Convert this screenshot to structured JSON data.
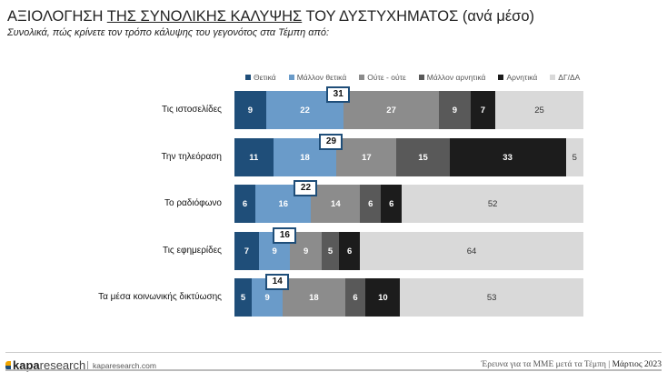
{
  "header": {
    "title_pre": "ΑΞΙΟΛΟΓΗΣΗ ",
    "title_underlined": "ΤΗΣ ΣΥΝΟΛΙΚΗΣ ΚΑΛΥΨΗΣ",
    "title_post": " ΤΟΥ ΔΥΣΤΥΧΗΜΑΤΟΣ (ανά μέσο)",
    "subtitle": "Συνολικά, πώς κρίνετε τον τρόπο κάλυψης του γεγονότος στα Τέμπη από:"
  },
  "chart_data": {
    "type": "bar",
    "orientation": "horizontal",
    "stacked": true,
    "legend_position": "top",
    "categories": [
      "Τις ιστοσελίδες",
      "Την τηλεόραση",
      "Το ραδιόφωνο",
      "Τις εφημερίδες",
      "Τα μέσα κοινωνικής δικτύωσης"
    ],
    "series": [
      {
        "name": "Θετικά",
        "color": "#1f4e79",
        "values": [
          9,
          11,
          6,
          7,
          5
        ]
      },
      {
        "name": "Μάλλον θετικά",
        "color": "#6a9bc9",
        "values": [
          22,
          18,
          16,
          9,
          9
        ]
      },
      {
        "name": "Ούτε - ούτε",
        "color": "#8c8c8c",
        "values": [
          27,
          17,
          14,
          9,
          18
        ]
      },
      {
        "name": "Μάλλον αρνητικά",
        "color": "#595959",
        "values": [
          9,
          15,
          6,
          5,
          6
        ]
      },
      {
        "name": "Αρνητικά",
        "color": "#1c1c1c",
        "values": [
          7,
          33,
          6,
          6,
          10
        ]
      },
      {
        "name": "ΔΓ/ΔΑ",
        "color": "#d9d9d9",
        "values": [
          25,
          5,
          52,
          64,
          53
        ]
      }
    ],
    "callouts": [
      31,
      29,
      22,
      16,
      14
    ]
  },
  "footer": {
    "brand_bold": "kapa",
    "brand_light": "research",
    "site": "kaparesearch.com",
    "caption": "Έρευνα για τα ΜΜΕ μετά τα Τέμπη | ",
    "date": "Μάρτιος 2023"
  }
}
